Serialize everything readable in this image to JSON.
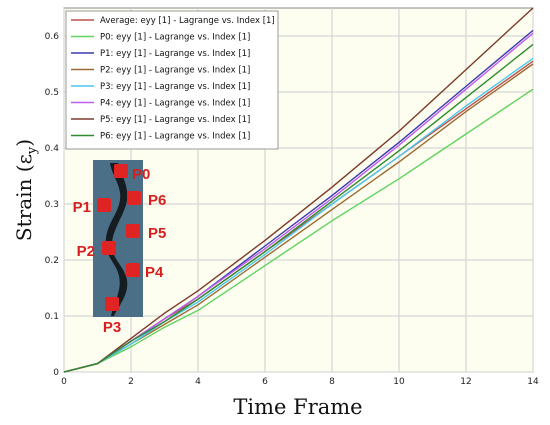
{
  "chart_data": {
    "type": "line",
    "xlabel": "Time Frame",
    "ylabel": "Strain (ε",
    "ylabel_sub": "y",
    "ylabel_close": ")",
    "xlim": [
      0,
      14
    ],
    "ylim": [
      0,
      0.65
    ],
    "xticks": [
      "0",
      "2",
      "4",
      "6",
      "8",
      "10",
      "12",
      "14"
    ],
    "yticks": [
      "0",
      "0.1",
      "0.2",
      "0.3",
      "0.4",
      "0.5",
      "0.6"
    ],
    "grid": true,
    "legend_position": "top-left",
    "x": [
      0,
      1,
      2,
      3,
      4,
      6,
      8,
      10,
      12,
      14
    ],
    "series": [
      {
        "name": "Average: eyy [1] - Lagrange vs. Index [1]",
        "color": "#c0504d",
        "values": [
          0,
          0.015,
          0.055,
          0.095,
          0.13,
          0.215,
          0.3,
          0.385,
          0.47,
          0.555
        ]
      },
      {
        "name": "P0: eyy [1] - Lagrange vs. Index [1]",
        "color": "#5fd35f",
        "values": [
          0,
          0.015,
          0.045,
          0.08,
          0.11,
          0.19,
          0.27,
          0.345,
          0.425,
          0.505
        ]
      },
      {
        "name": "P1: eyy [1] - Lagrange vs. Index [1]",
        "color": "#3a3ab0",
        "values": [
          0,
          0.015,
          0.055,
          0.095,
          0.135,
          0.225,
          0.315,
          0.41,
          0.51,
          0.61
        ]
      },
      {
        "name": "P2: eyy [1] - Lagrange vs. Index [1]",
        "color": "#9c6b34",
        "values": [
          0,
          0.015,
          0.05,
          0.085,
          0.12,
          0.205,
          0.29,
          0.375,
          0.465,
          0.55
        ]
      },
      {
        "name": "P3: eyy [1] - Lagrange vs. Index [1]",
        "color": "#4cc9f0",
        "values": [
          0,
          0.015,
          0.05,
          0.09,
          0.125,
          0.21,
          0.3,
          0.385,
          0.475,
          0.56
        ]
      },
      {
        "name": "P4: eyy [1] - Lagrange vs. Index [1]",
        "color": "#c05cf0",
        "values": [
          0,
          0.015,
          0.055,
          0.095,
          0.135,
          0.22,
          0.31,
          0.405,
          0.505,
          0.605
        ]
      },
      {
        "name": "P5: eyy [1] - Lagrange vs. Index [1]",
        "color": "#7a3b2a",
        "values": [
          0,
          0.015,
          0.06,
          0.105,
          0.145,
          0.235,
          0.33,
          0.43,
          0.54,
          0.65
        ]
      },
      {
        "name": "P6: eyy [1] - Lagrange vs. Index [1]",
        "color": "#2e8b2e",
        "values": [
          0,
          0.015,
          0.055,
          0.09,
          0.13,
          0.215,
          0.305,
          0.395,
          0.49,
          0.585
        ]
      }
    ]
  },
  "inset": {
    "points": [
      "P0",
      "P1",
      "P2",
      "P3",
      "P4",
      "P5",
      "P6"
    ],
    "marker_color": "#e02424"
  }
}
